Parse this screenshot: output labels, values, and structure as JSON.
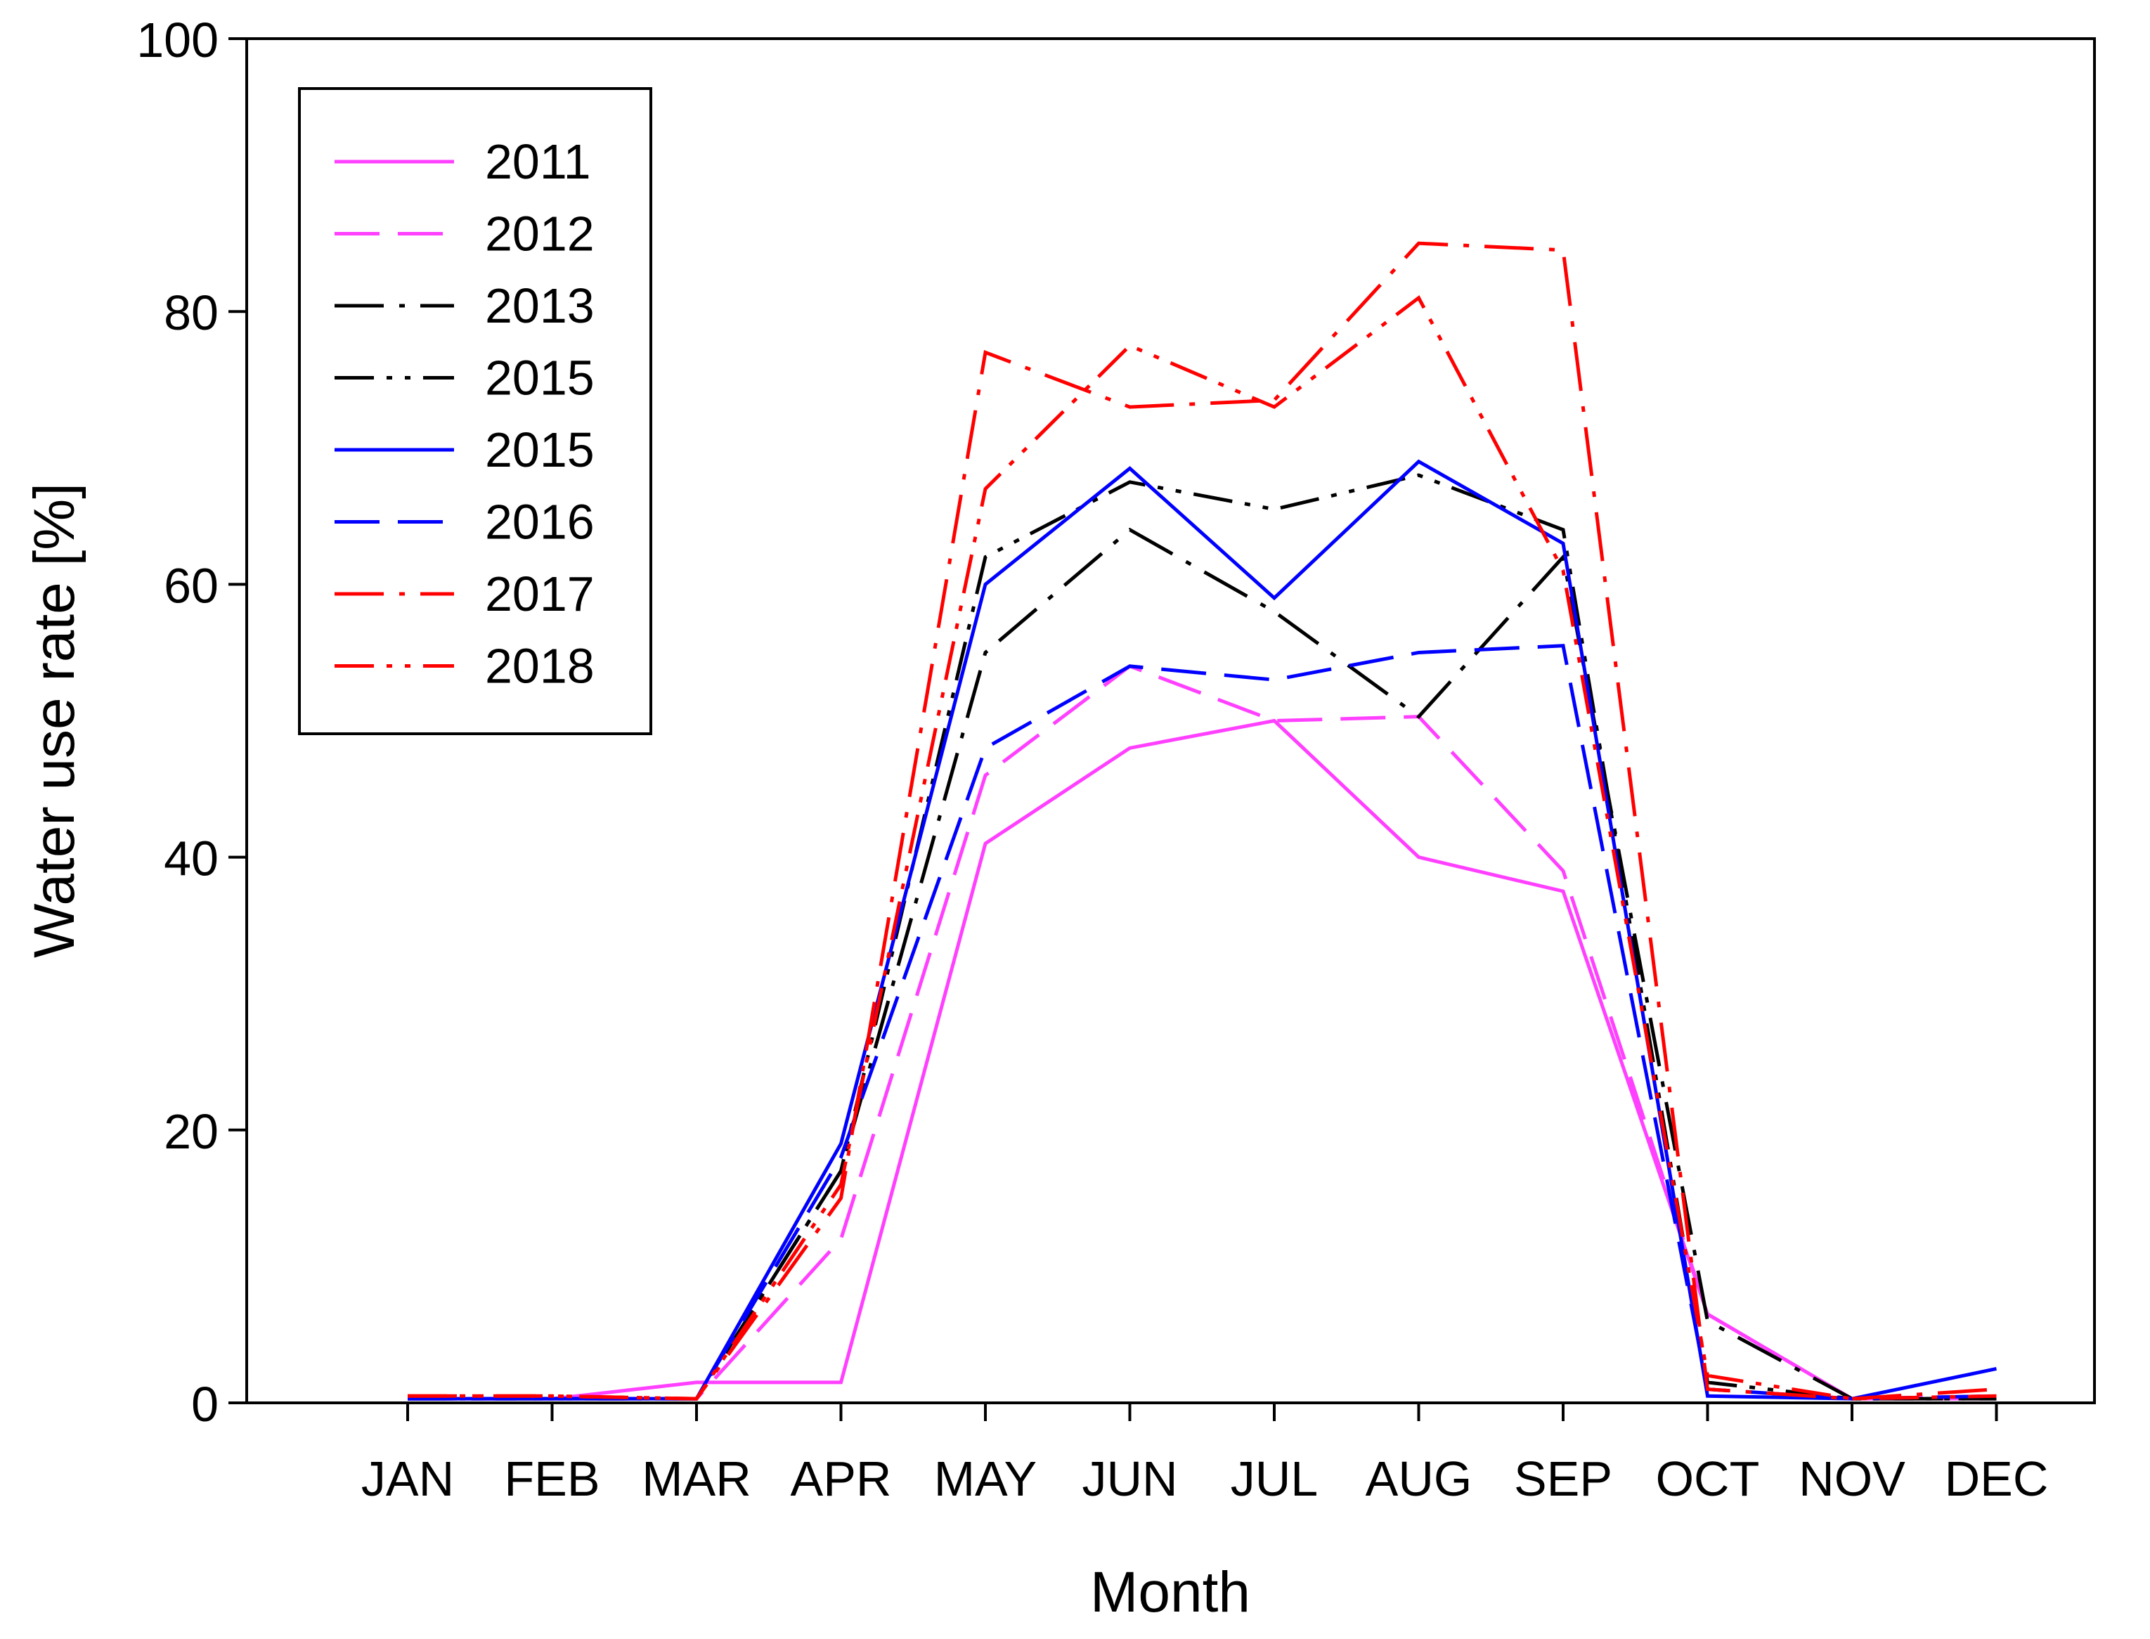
{
  "chart_data": {
    "type": "line",
    "title": "",
    "xlabel": "Month",
    "ylabel": "Water use rate [%]",
    "ylim": [
      0,
      100
    ],
    "yticks": [
      0,
      20,
      40,
      60,
      80,
      100
    ],
    "ytick_labels": [
      "0",
      "20",
      "40",
      "60",
      "80",
      "100"
    ],
    "categories": [
      "JAN",
      "FEB",
      "MAR",
      "APR",
      "MAY",
      "JUN",
      "JUL",
      "AUG",
      "SEP",
      "OCT",
      "NOV",
      "DEC"
    ],
    "legend_position": "top-left",
    "grid": false,
    "series": [
      {
        "name": "2011",
        "color": "#ff40ff",
        "dash": "solid",
        "values": [
          0.3,
          0.3,
          1.5,
          1.5,
          41,
          48,
          50,
          40,
          37.5,
          6.5,
          0.3,
          0.3
        ]
      },
      {
        "name": "2012",
        "color": "#ff40ff",
        "dash": "dash",
        "values": [
          0.3,
          0.3,
          0.3,
          12,
          46,
          54,
          50,
          50.3,
          39,
          6.5,
          0.3,
          0.5
        ]
      },
      {
        "name": "2013",
        "color": "#000000",
        "dash": "dashdot",
        "values": [
          0.3,
          0.3,
          0.3,
          17,
          55,
          64,
          58,
          50.3,
          62,
          6,
          0.3,
          0.3
        ]
      },
      {
        "name": "2015",
        "color": "#000000",
        "dash": "dashdotdot",
        "values": [
          0.3,
          0.3,
          0.3,
          17,
          62,
          67.5,
          65.5,
          68,
          64,
          1.5,
          0.3,
          0.3
        ]
      },
      {
        "name": "2015",
        "color": "#0000ff",
        "dash": "solid",
        "values": [
          0.3,
          0.3,
          0.3,
          19,
          60,
          68.5,
          59,
          69,
          63,
          0.5,
          0.3,
          2.5
        ]
      },
      {
        "name": "2016",
        "color": "#0000ff",
        "dash": "dash",
        "values": [
          0.3,
          0.3,
          0.3,
          18,
          48,
          54,
          53,
          55,
          55.5,
          1,
          0.3,
          0.5
        ]
      },
      {
        "name": "2017",
        "color": "#ff0000",
        "dash": "dashdot",
        "values": [
          0.5,
          0.5,
          0.3,
          15,
          77,
          73,
          73.5,
          85,
          84.5,
          1,
          0.3,
          1
        ]
      },
      {
        "name": "2018",
        "color": "#ff0000",
        "dash": "dashdotdot",
        "values": [
          0.5,
          0.5,
          0.3,
          16,
          67,
          77.5,
          73,
          81,
          61,
          2,
          0.3,
          0.5
        ]
      }
    ]
  }
}
